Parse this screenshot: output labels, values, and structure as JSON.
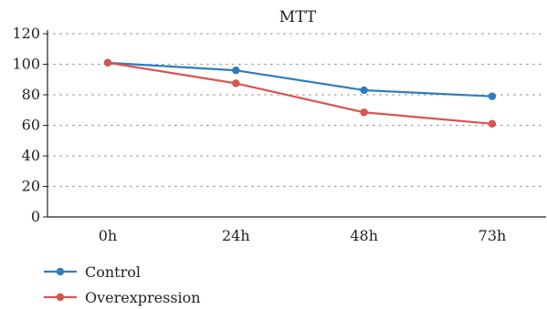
{
  "chart_data": {
    "type": "line",
    "title": "MTT",
    "xlabel": "",
    "ylabel": "",
    "categories": [
      "0h",
      "24h",
      "48h",
      "73h"
    ],
    "ylim": [
      0,
      120
    ],
    "yticks": [
      0,
      20,
      40,
      60,
      80,
      100,
      120
    ],
    "grid": "dotted horizontal",
    "legend_position": "bottom-left",
    "series": [
      {
        "name": "Control",
        "color": "#2e7ebf",
        "values": [
          101,
          96,
          83,
          79
        ]
      },
      {
        "name": "Overexpression",
        "color": "#d9534f",
        "values": [
          101,
          87.5,
          68.5,
          61
        ]
      }
    ]
  }
}
